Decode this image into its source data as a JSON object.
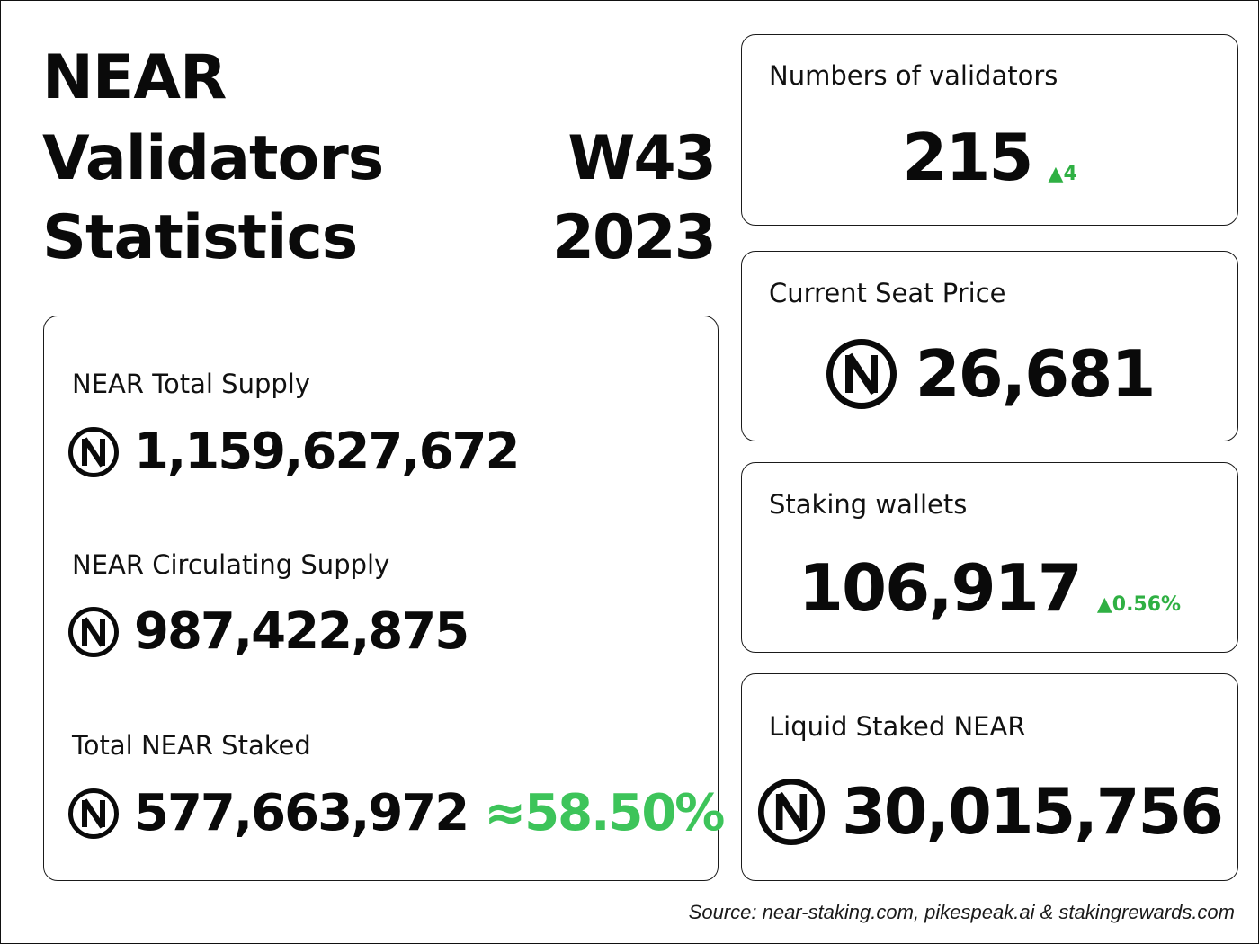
{
  "header": {
    "line1": "NEAR",
    "line2": "Validators",
    "line3": "Statistics",
    "week": "W43",
    "year": "2023"
  },
  "supply_panel": {
    "total_supply_label": "NEAR Total Supply",
    "total_supply_value": "1,159,627,672",
    "circulating_label": "NEAR Circulating Supply",
    "circulating_value": "987,422,875",
    "staked_label": "Total NEAR Staked",
    "staked_value": "577,663,972",
    "staked_percent": "≈58.50%"
  },
  "cards": {
    "validators": {
      "label": "Numbers of validators",
      "value": "215",
      "delta": "▲4"
    },
    "seat_price": {
      "label": "Current Seat Price",
      "value": "26,681"
    },
    "staking_wallets": {
      "label": "Staking wallets",
      "value": "106,917",
      "delta": "▲0.56%"
    },
    "liquid_staked": {
      "label": "Liquid Staked NEAR",
      "value": "30,015,756"
    }
  },
  "source": "Source: near-staking.com, pikespeak.ai & stakingrewards.com",
  "icons": {
    "token": "near-token-icon"
  },
  "colors": {
    "positive": "#2fb043",
    "percent": "#3dc45a",
    "text": "#0a0a0a"
  }
}
